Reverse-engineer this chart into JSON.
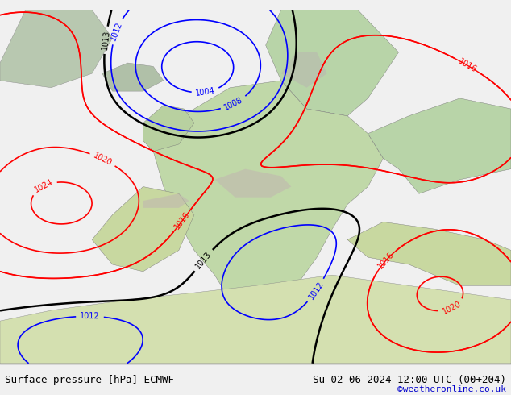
{
  "title_left": "Surface pressure [hPa] ECMWF",
  "title_right": "Su 02-06-2024 12:00 UTC (00+204)",
  "credit": "©weatheronline.co.uk",
  "bg_color": "#e8f4e8",
  "land_color": "#c8e6c8",
  "sea_color": "#d0e8f0",
  "fig_width": 6.34,
  "fig_height": 4.9,
  "dpi": 100,
  "bottom_bar_color": "#f0f0f0",
  "bottom_text_color": "#000000",
  "credit_color": "#0000cc"
}
